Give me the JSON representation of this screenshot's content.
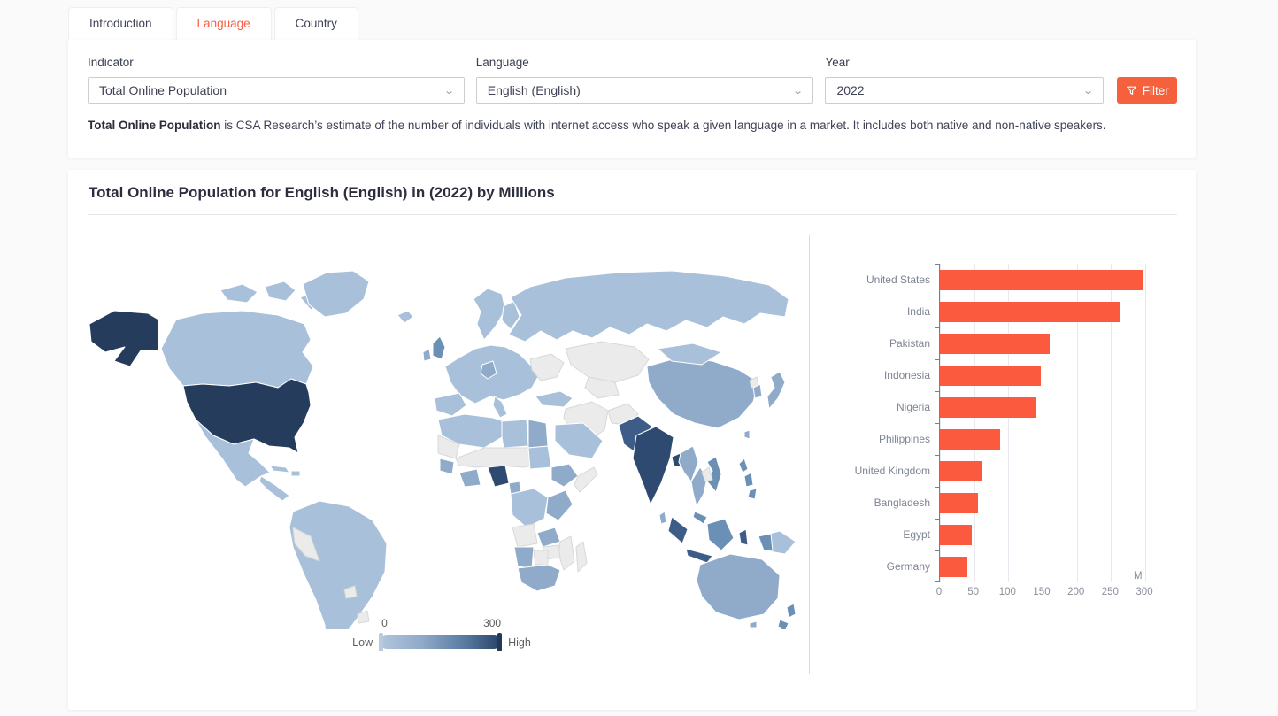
{
  "tabs": [
    {
      "label": "Introduction",
      "active": false
    },
    {
      "label": "Language",
      "active": true
    },
    {
      "label": "Country",
      "active": false
    }
  ],
  "filter_panel": {
    "indicator_label": "Indicator",
    "indicator_value": "Total Online Population",
    "language_label": "Language",
    "language_value": "English (English)",
    "year_label": "Year",
    "year_value": "2022",
    "filter_button_label": "Filter"
  },
  "description": {
    "lead": "Total Online Population",
    "body": " is CSA Research’s estimate of the number of individuals with internet access who speak a given language in a market. It includes both native and non-native speakers."
  },
  "chart_section": {
    "title": "Total Online Population for English (English) in (2022) by Millions"
  },
  "chart_data": [
    {
      "type": "choropleth",
      "title": "World map of Total Online Population for English (English) in 2022, millions",
      "legend": {
        "min": 0,
        "max": 300,
        "low_label": "Low",
        "high_label": "High"
      },
      "color_range": [
        "#b3c5dc",
        "#24395a"
      ],
      "no_data_color": "#ebebeb",
      "values": {
        "United States": 298,
        "India": 264,
        "Pakistan": 160,
        "Indonesia": 148,
        "Nigeria": 141,
        "Philippines": 88,
        "United Kingdom": 61,
        "Bangladesh": 56,
        "Egypt": 47,
        "Germany": 40
      }
    },
    {
      "type": "bar",
      "orientation": "horizontal",
      "categories": [
        "United States",
        "India",
        "Pakistan",
        "Indonesia",
        "Nigeria",
        "Philippines",
        "United Kingdom",
        "Bangladesh",
        "Egypt",
        "Germany"
      ],
      "values": [
        298,
        264,
        160,
        148,
        141,
        88,
        61,
        56,
        47,
        40
      ],
      "x_ticks": [
        0,
        50,
        100,
        150,
        200,
        250,
        300
      ],
      "xlim": [
        0,
        335
      ],
      "unit": "M",
      "bar_color": "#fb5a3e",
      "grid": true,
      "legend_position": "none"
    }
  ],
  "map": {
    "palette": {
      "gray": "#ebebeb",
      "light": "#a9c0da",
      "med": "#8fabc9",
      "meddark": "#6b90b6",
      "dark": "#3d5d88",
      "navy": "#2f4a70",
      "darkest": "#253c5c"
    }
  },
  "colors": {
    "accent_red": "#f85c44",
    "filter_button": "#f4613c",
    "bar": "#fb5a3e"
  }
}
